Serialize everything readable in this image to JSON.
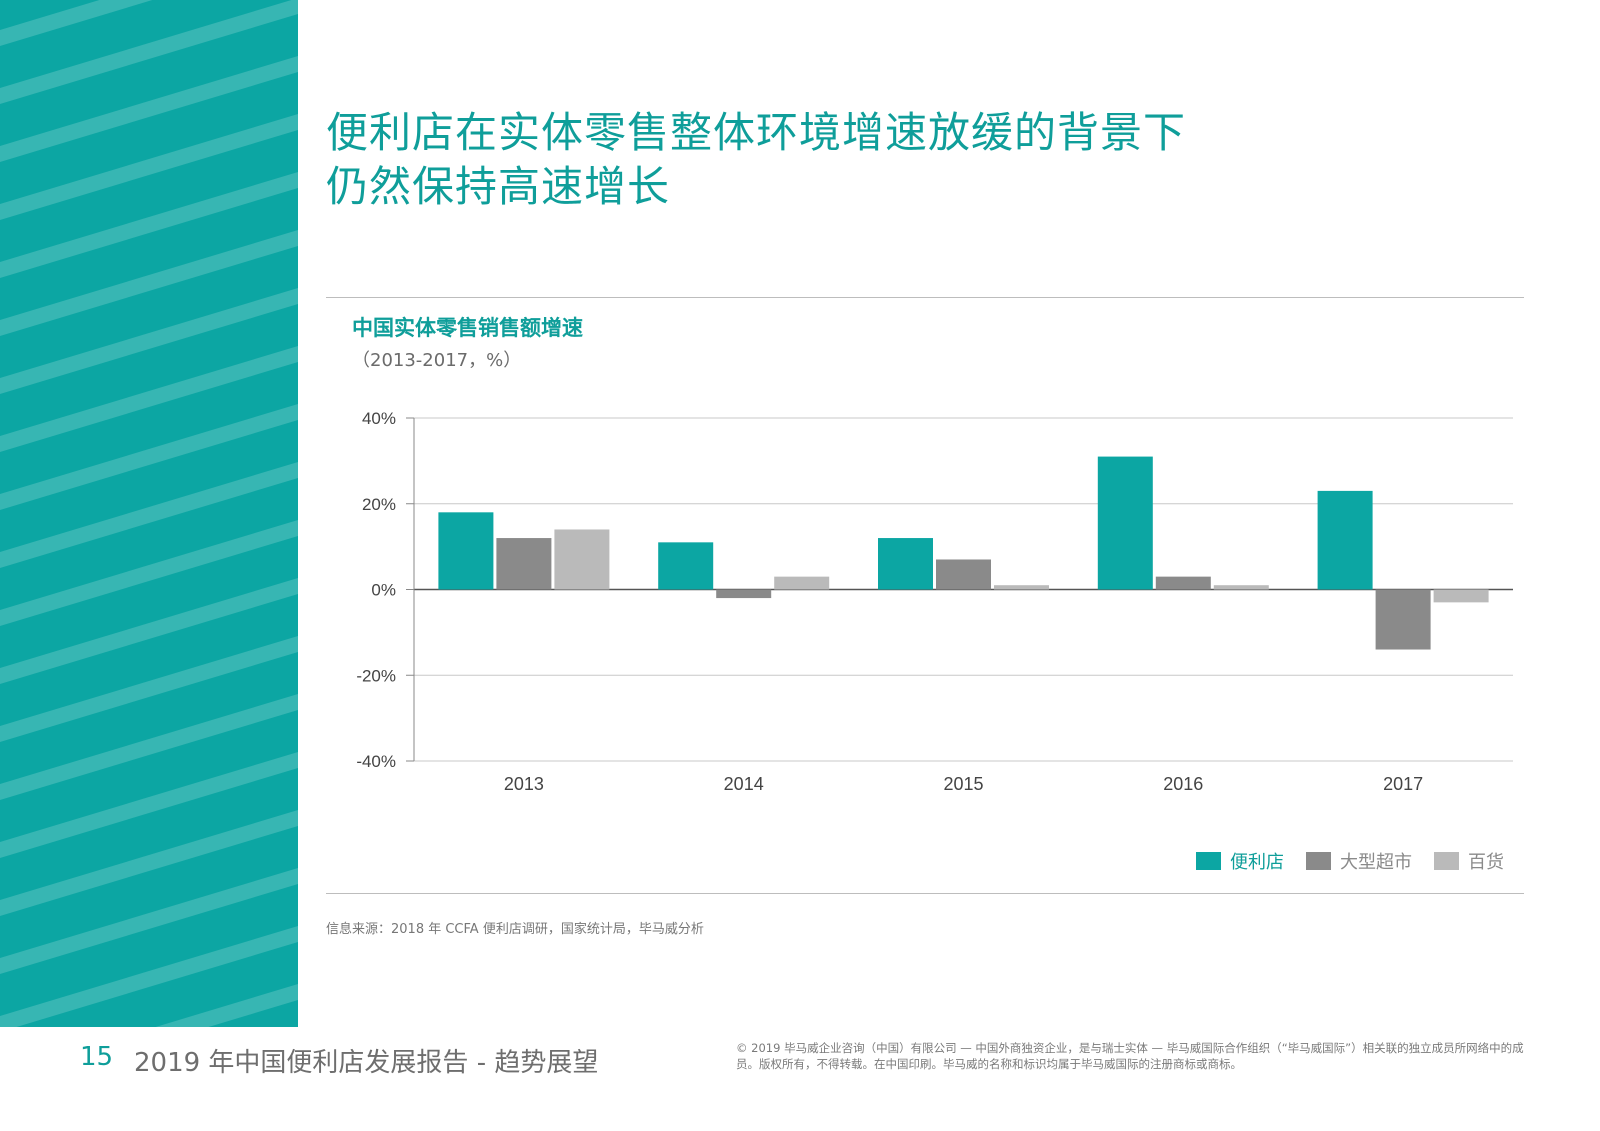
{
  "headline": {
    "line1": "便利店在实体零售整体环境增速放缓的背景下",
    "line2": "仍然保持高速增长"
  },
  "colors": {
    "accent": "#0ca6a3",
    "heading": "#0f9e9a",
    "series": [
      "#0ca6a3",
      "#8a8a8a",
      "#bababa"
    ]
  },
  "chart_data": {
    "type": "bar",
    "title": "中国实体零售销售额增速",
    "subtitle": "（2013-2017，%）",
    "categories": [
      "2013",
      "2014",
      "2015",
      "2016",
      "2017"
    ],
    "series": [
      {
        "name": "便利店",
        "values": [
          18,
          11,
          12,
          31,
          23
        ]
      },
      {
        "name": "大型超市",
        "values": [
          12,
          -2,
          7,
          3,
          -14
        ]
      },
      {
        "name": "百货",
        "values": [
          14,
          3,
          1,
          1,
          -3
        ]
      }
    ],
    "ylim": [
      -40,
      40
    ],
    "yticks": [
      40,
      20,
      0,
      -20,
      -40
    ],
    "ytick_labels": [
      "40%",
      "20%",
      "0%",
      "-20%",
      "-40%"
    ],
    "grid": true,
    "legend_position": "bottom-right"
  },
  "source": "信息来源：2018 年 CCFA 便利店调研，国家统计局，毕马威分析",
  "footer": {
    "page_number": "15",
    "title": "2019 年中国便利店发展报告 - 趋势展望",
    "copyright": "© 2019 毕马威企业咨询（中国）有限公司 — 中国外商独资企业，是与瑞士实体 — 毕马威国际合作组织（“毕马威国际”）相关联的独立成员所网络中的成员。版权所有，不得转载。在中国印刷。毕马威的名称和标识均属于毕马威国际的注册商标或商标。"
  }
}
